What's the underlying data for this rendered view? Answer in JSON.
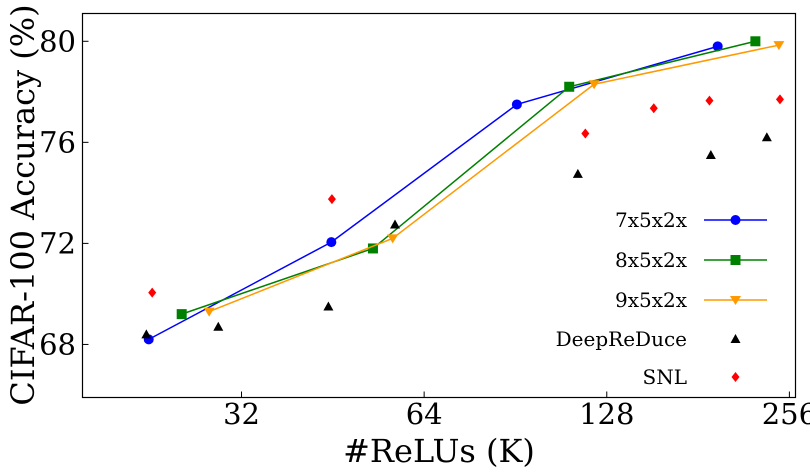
{
  "chart_data": {
    "type": "line",
    "xlabel": "#ReLUs (K)",
    "ylabel": "CIFAR-100 Accuracy (%)",
    "xscale": "log2",
    "xlim": [
      17.5,
      262
    ],
    "ylim": [
      65.9,
      81.1
    ],
    "xticks": [
      32,
      64,
      128,
      256
    ],
    "xtick_labels": [
      "32",
      "64",
      "128",
      "256"
    ],
    "yticks": [
      68,
      72,
      76,
      80
    ],
    "ytick_labels": [
      "68",
      "72",
      "76",
      "80"
    ],
    "grid": false,
    "legend_position": "lower-right",
    "series": [
      {
        "name": "7x5x2x",
        "color": "#0000ff",
        "marker": "circle",
        "line": true,
        "x": [
          22.5,
          45,
          91,
          195
        ],
        "y": [
          68.2,
          72.05,
          77.5,
          79.8
        ]
      },
      {
        "name": "8x5x2x",
        "color": "#008000",
        "marker": "square",
        "line": true,
        "x": [
          25.5,
          52.7,
          111,
          225
        ],
        "y": [
          69.2,
          71.8,
          78.2,
          80.0
        ]
      },
      {
        "name": "9x5x2x",
        "color": "#ff9900",
        "marker": "triangle-down",
        "line": true,
        "x": [
          28.3,
          56.8,
          122,
          246
        ],
        "y": [
          69.3,
          72.2,
          78.3,
          79.85
        ]
      },
      {
        "name": "DeepReDuce",
        "color": "#000000",
        "marker": "triangle-up",
        "line": false,
        "x": [
          22.3,
          29.3,
          44.5,
          57.3,
          114.7,
          190,
          235
        ],
        "y": [
          68.4,
          68.7,
          69.5,
          72.75,
          74.75,
          75.5,
          76.2
        ]
      },
      {
        "name": "SNL",
        "color": "#ff0000",
        "marker": "diamond",
        "line": false,
        "x": [
          22.8,
          45.1,
          118,
          153,
          189,
          247
        ],
        "y": [
          70.05,
          73.75,
          76.35,
          77.35,
          77.65,
          77.7
        ]
      }
    ]
  }
}
